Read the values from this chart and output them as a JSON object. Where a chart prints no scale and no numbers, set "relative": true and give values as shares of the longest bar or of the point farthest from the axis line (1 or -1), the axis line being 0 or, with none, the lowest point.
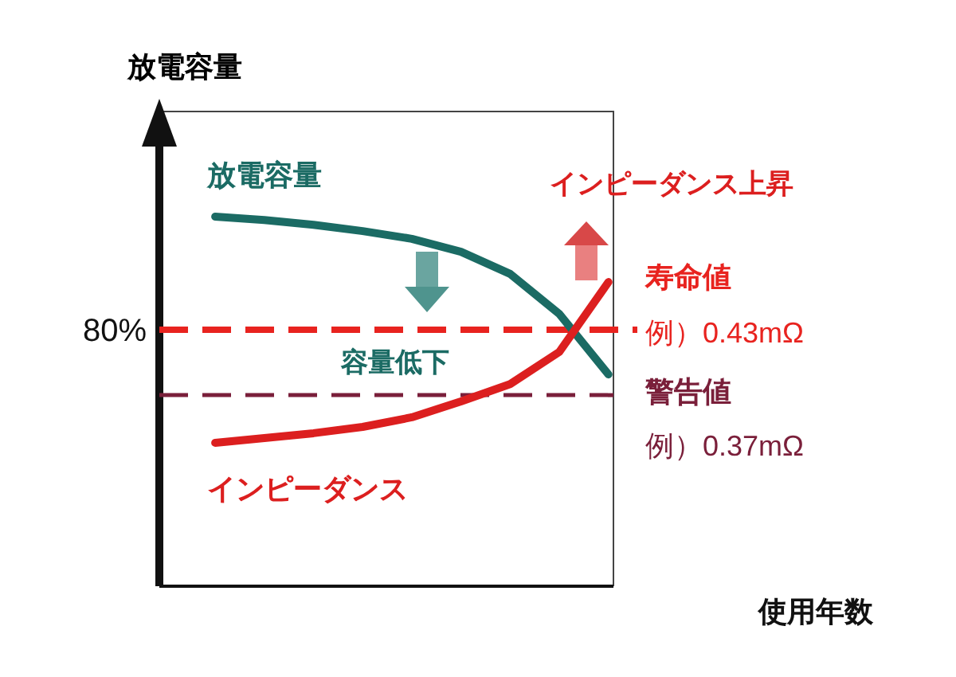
{
  "chart_data": {
    "type": "line",
    "relative": true,
    "ylabel": "放電容量",
    "categories": [
      null,
      null,
      null,
      null,
      null,
      null,
      null,
      null,
      null
    ],
    "series": [
      {
        "name": "放電容量",
        "color": "#1b6b64",
        "values": [
          1,
          0.991,
          0.978,
          0.961,
          0.94,
          0.905,
          0.845,
          0.737,
          0.573
        ]
      },
      {
        "name": "インピーダンス",
        "color": "#dc1f1f",
        "values": [
          0.388,
          0.401,
          0.414,
          0.431,
          0.457,
          0.5,
          0.547,
          0.634,
          0.823
        ]
      }
    ],
    "ref_lines": [
      {
        "axis": "y",
        "value": 0.694,
        "color": "#e8231f",
        "line_style": "dashed"
      },
      {
        "axis": "y",
        "value": 0.517,
        "color": "#7a1f3a",
        "line_style": "dashed"
      }
    ],
    "annotations": [
      "80%",
      "容量低下",
      "インピーダンス上昇",
      "寿命値",
      "例）0.43mΩ",
      "警告値",
      "例）0.37mΩ",
      "使用年数"
    ]
  }
}
